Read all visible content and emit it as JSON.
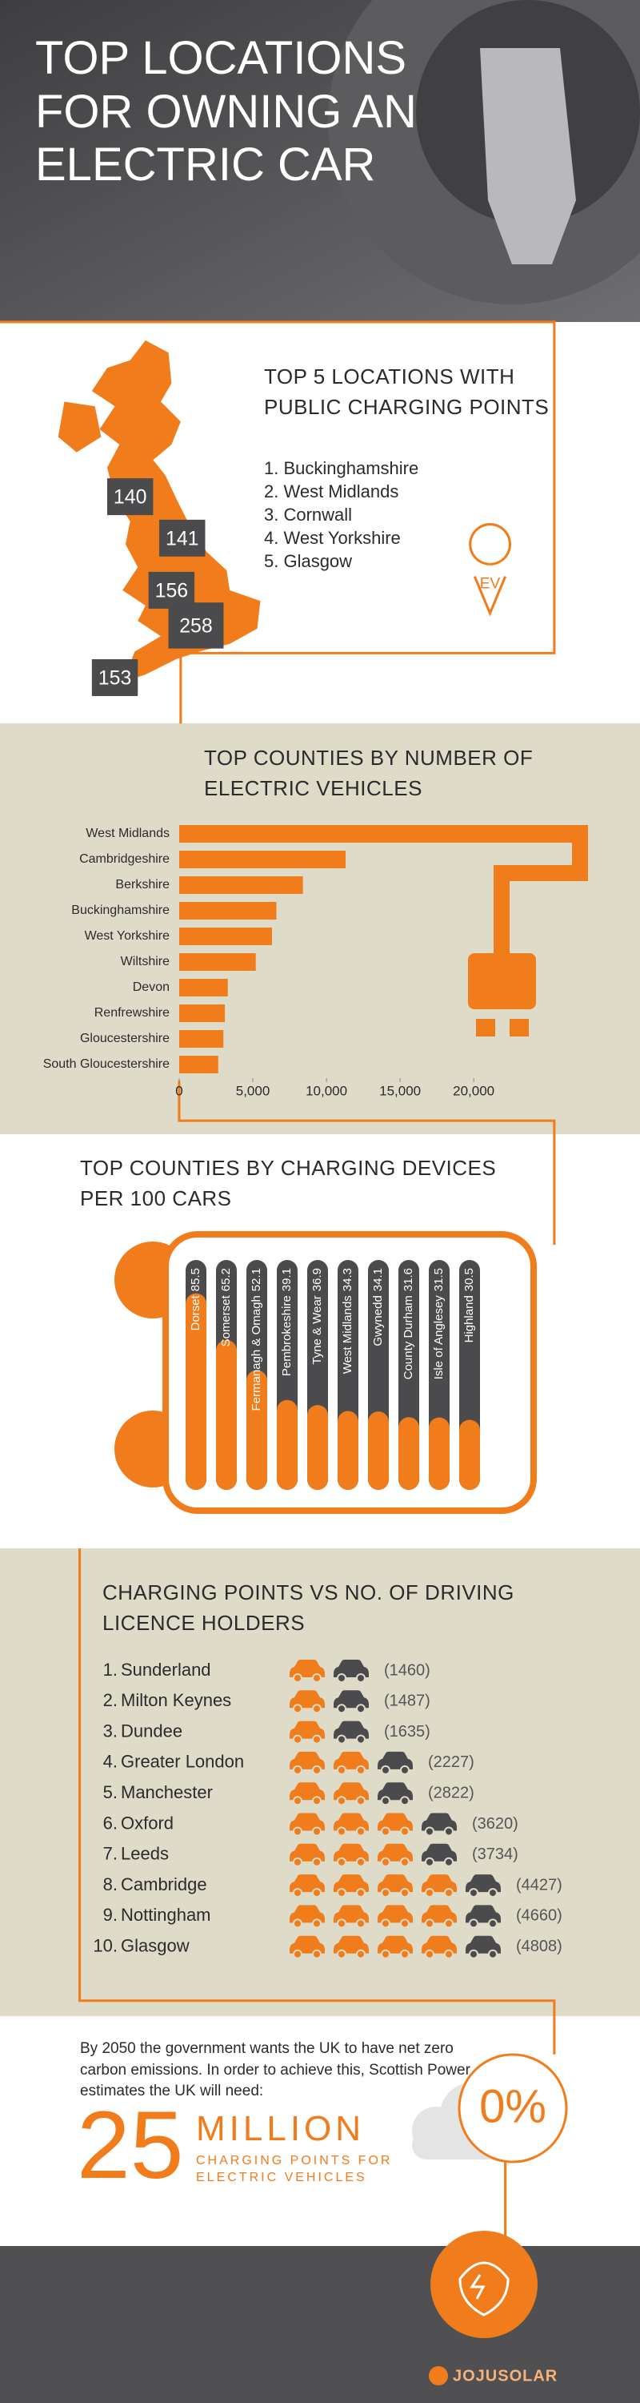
{
  "header": {
    "title": "TOP LOCATIONS FOR OWNING AN ELECTRIC CAR"
  },
  "public_charging": {
    "title": "TOP 5 LOCATIONS WITH PUBLIC CHARGING POINTS",
    "items": [
      "1. Buckinghamshire",
      "2. West Midlands",
      "3. Cornwall",
      "4. West Yorkshire",
      "5. Glasgow"
    ],
    "map_labels": [
      140,
      141,
      156,
      258,
      153
    ],
    "badge": "EV"
  },
  "chart_data": [
    {
      "type": "hbar",
      "title": "TOP COUNTIES BY NUMBER OF ELECTRIC VEHICLES",
      "categories": [
        "West Midlands",
        "Cambridgeshire",
        "Berkshire",
        "Buckinghamshire",
        "West Yorkshire",
        "Wiltshire",
        "Devon",
        "Renfrewshire",
        "Gloucestershire",
        "South Gloucestershire"
      ],
      "values": [
        27000,
        11300,
        8400,
        6600,
        6300,
        5200,
        3300,
        3100,
        3000,
        2650
      ],
      "color": "#f07c1b",
      "xlim": [
        0,
        27000
      ],
      "xticks": [
        0,
        {
          "value": 5000,
          "label": "5,000"
        },
        {
          "value": 10000,
          "label": "10,000"
        },
        {
          "value": 15000,
          "label": "15,000"
        },
        {
          "value": 20000,
          "label": "20,000"
        }
      ]
    },
    {
      "type": "pill",
      "title": "TOP COUNTIES BY CHARGING DEVICES PER 100 CARS",
      "categories": [
        "Dorset",
        "Somerset",
        "Fermanagh & Omagh",
        "Pembrokeshire",
        "Tyne & Wear",
        "West Midlands",
        "Gwynedd",
        "County Durham",
        "Isle of Anglesey",
        "Highland"
      ],
      "values": [
        85.5,
        65.2,
        52.1,
        39.1,
        36.9,
        34.3,
        34.1,
        31.6,
        31.5,
        30.5
      ],
      "color": "#f07c1b",
      "track_color": "#4b4b4d",
      "ylim": [
        0,
        100
      ]
    },
    {
      "type": "pictogram",
      "title": "CHARGING POINTS VS NO. OF DRIVING LICENCE HOLDERS",
      "ranks": [
        "1.",
        "2.",
        "3.",
        "4.",
        "5.",
        "6.",
        "7.",
        "8.",
        "9.",
        "10."
      ],
      "categories": [
        "Sunderland",
        "Milton Keynes",
        "Dundee",
        "Greater London",
        "Manchester",
        "Oxford",
        "Leeds",
        "Cambridge",
        "Nottingham",
        "Glasgow"
      ],
      "values": [
        1460,
        1487,
        1635,
        2227,
        2822,
        3620,
        3734,
        4427,
        4660,
        4808
      ],
      "value_labels": [
        "(1460)",
        "(1487)",
        "(1635)",
        "(2227)",
        "(2822)",
        "(3620)",
        "(3734)",
        "(4427)",
        "(4660)",
        "(4808)"
      ],
      "color": "#f07c1b",
      "accent_color": "#4b4b4d"
    }
  ],
  "target": {
    "intro": "By 2050 the government wants the UK to have net zero carbon emissions. In order to achieve this, Scottish Power estimates the UK will need:",
    "number": 25,
    "unit": "MILLION",
    "caption": "CHARGING POINTS FOR ELECTRIC VEHICLES",
    "percent": "0%"
  },
  "footer": {
    "brand": "JOJUSOLAR"
  }
}
